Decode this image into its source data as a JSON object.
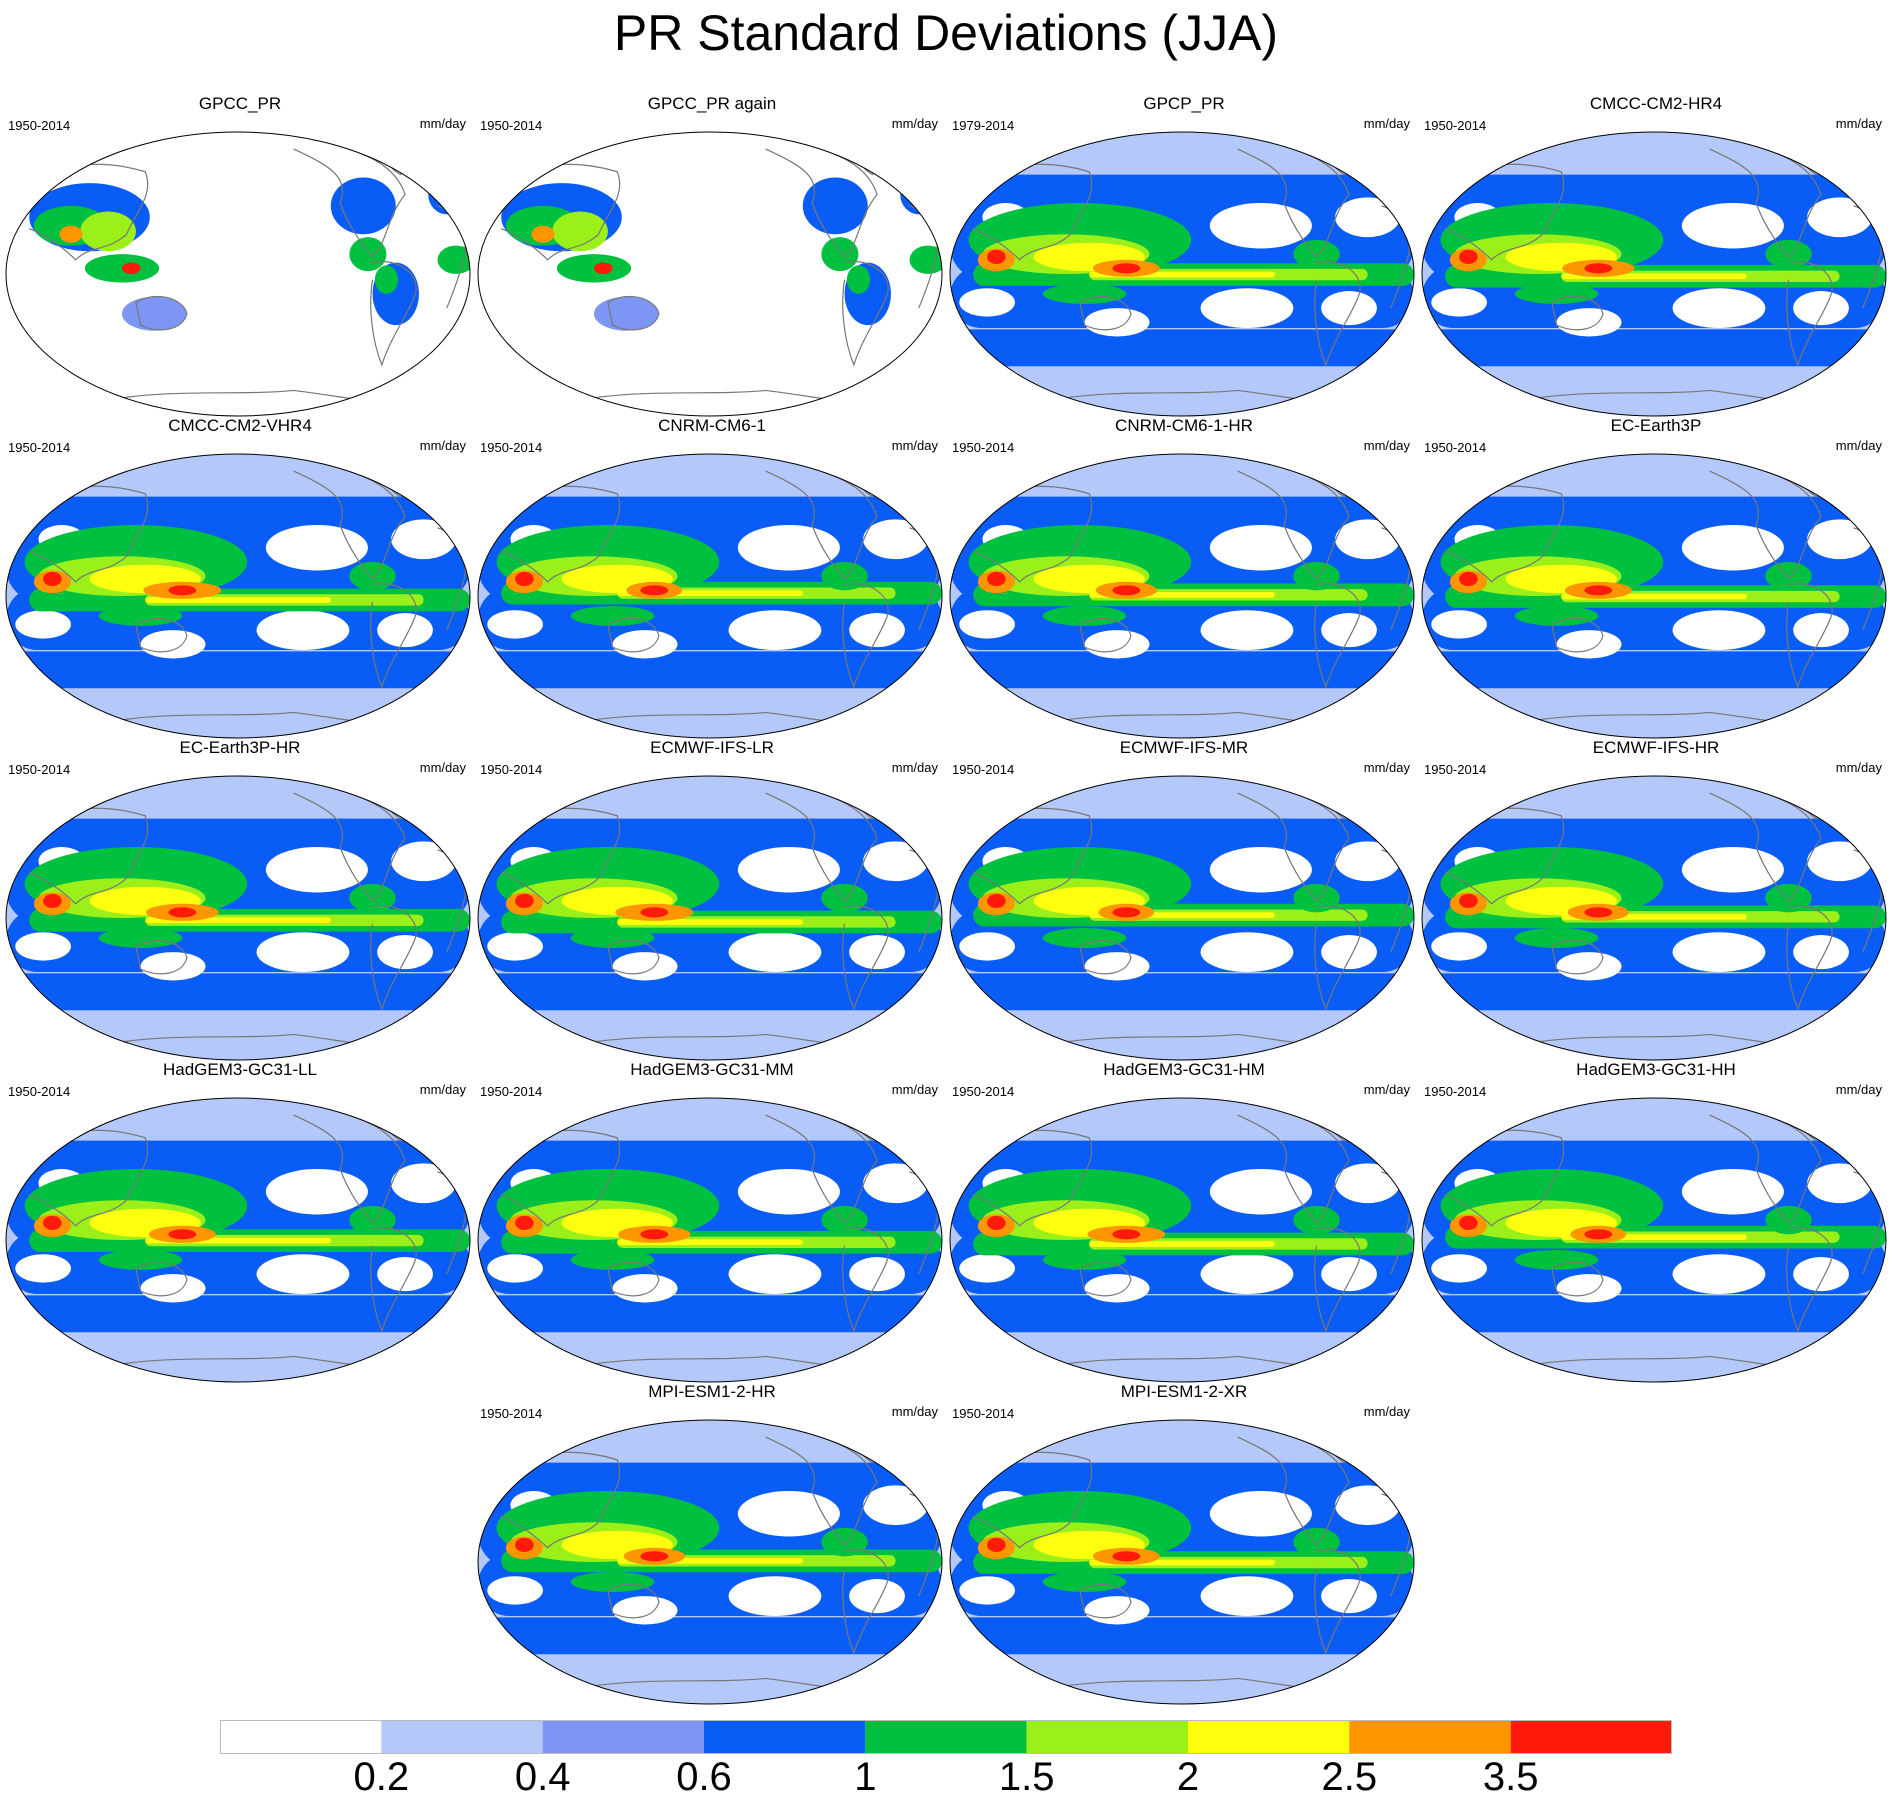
{
  "title": "PR Standard Deviations (JJA)",
  "panels": [
    {
      "title": "GPCC_PR",
      "period": "1950-2014",
      "units": "mm/day",
      "pattern": "obs-land"
    },
    {
      "title": "GPCC_PR again",
      "period": "1950-2014",
      "units": "mm/day",
      "pattern": "obs-land"
    },
    {
      "title": "GPCP_PR",
      "period": "1979-2014",
      "units": "mm/day",
      "pattern": "model"
    },
    {
      "title": "CMCC-CM2-HR4",
      "period": "1950-2014",
      "units": "mm/day",
      "pattern": "model"
    },
    {
      "title": "CMCC-CM2-VHR4",
      "period": "1950-2014",
      "units": "mm/day",
      "pattern": "model"
    },
    {
      "title": "CNRM-CM6-1",
      "period": "1950-2014",
      "units": "mm/day",
      "pattern": "model"
    },
    {
      "title": "CNRM-CM6-1-HR",
      "period": "1950-2014",
      "units": "mm/day",
      "pattern": "model"
    },
    {
      "title": "EC-Earth3P",
      "period": "1950-2014",
      "units": "mm/day",
      "pattern": "model"
    },
    {
      "title": "EC-Earth3P-HR",
      "period": "1950-2014",
      "units": "mm/day",
      "pattern": "model"
    },
    {
      "title": "ECMWF-IFS-LR",
      "period": "1950-2014",
      "units": "mm/day",
      "pattern": "model"
    },
    {
      "title": "ECMWF-IFS-MR",
      "period": "1950-2014",
      "units": "mm/day",
      "pattern": "model"
    },
    {
      "title": "ECMWF-IFS-HR",
      "period": "1950-2014",
      "units": "mm/day",
      "pattern": "model"
    },
    {
      "title": "HadGEM3-GC31-LL",
      "period": "1950-2014",
      "units": "mm/day",
      "pattern": "model"
    },
    {
      "title": "HadGEM3-GC31-MM",
      "period": "1950-2014",
      "units": "mm/day",
      "pattern": "model"
    },
    {
      "title": "HadGEM3-GC31-HM",
      "period": "1950-2014",
      "units": "mm/day",
      "pattern": "model"
    },
    {
      "title": "HadGEM3-GC31-HH",
      "period": "1950-2014",
      "units": "mm/day",
      "pattern": "model"
    },
    {
      "title": "MPI-ESM1-2-HR",
      "period": "1950-2014",
      "units": "mm/day",
      "pattern": "model"
    },
    {
      "title": "MPI-ESM1-2-XR",
      "period": "1950-2014",
      "units": "mm/day",
      "pattern": "model"
    }
  ],
  "colorbar": {
    "colors": [
      "#ffffff",
      "#b4c8f9",
      "#7d95f5",
      "#0a5cf6",
      "#00c040",
      "#9bf01a",
      "#ffff10",
      "#ff9600",
      "#ff1a0a"
    ],
    "labels": [
      "0.2",
      "0.4",
      "0.6",
      "1",
      "1.5",
      "2",
      "2.5",
      "3.5"
    ]
  }
}
